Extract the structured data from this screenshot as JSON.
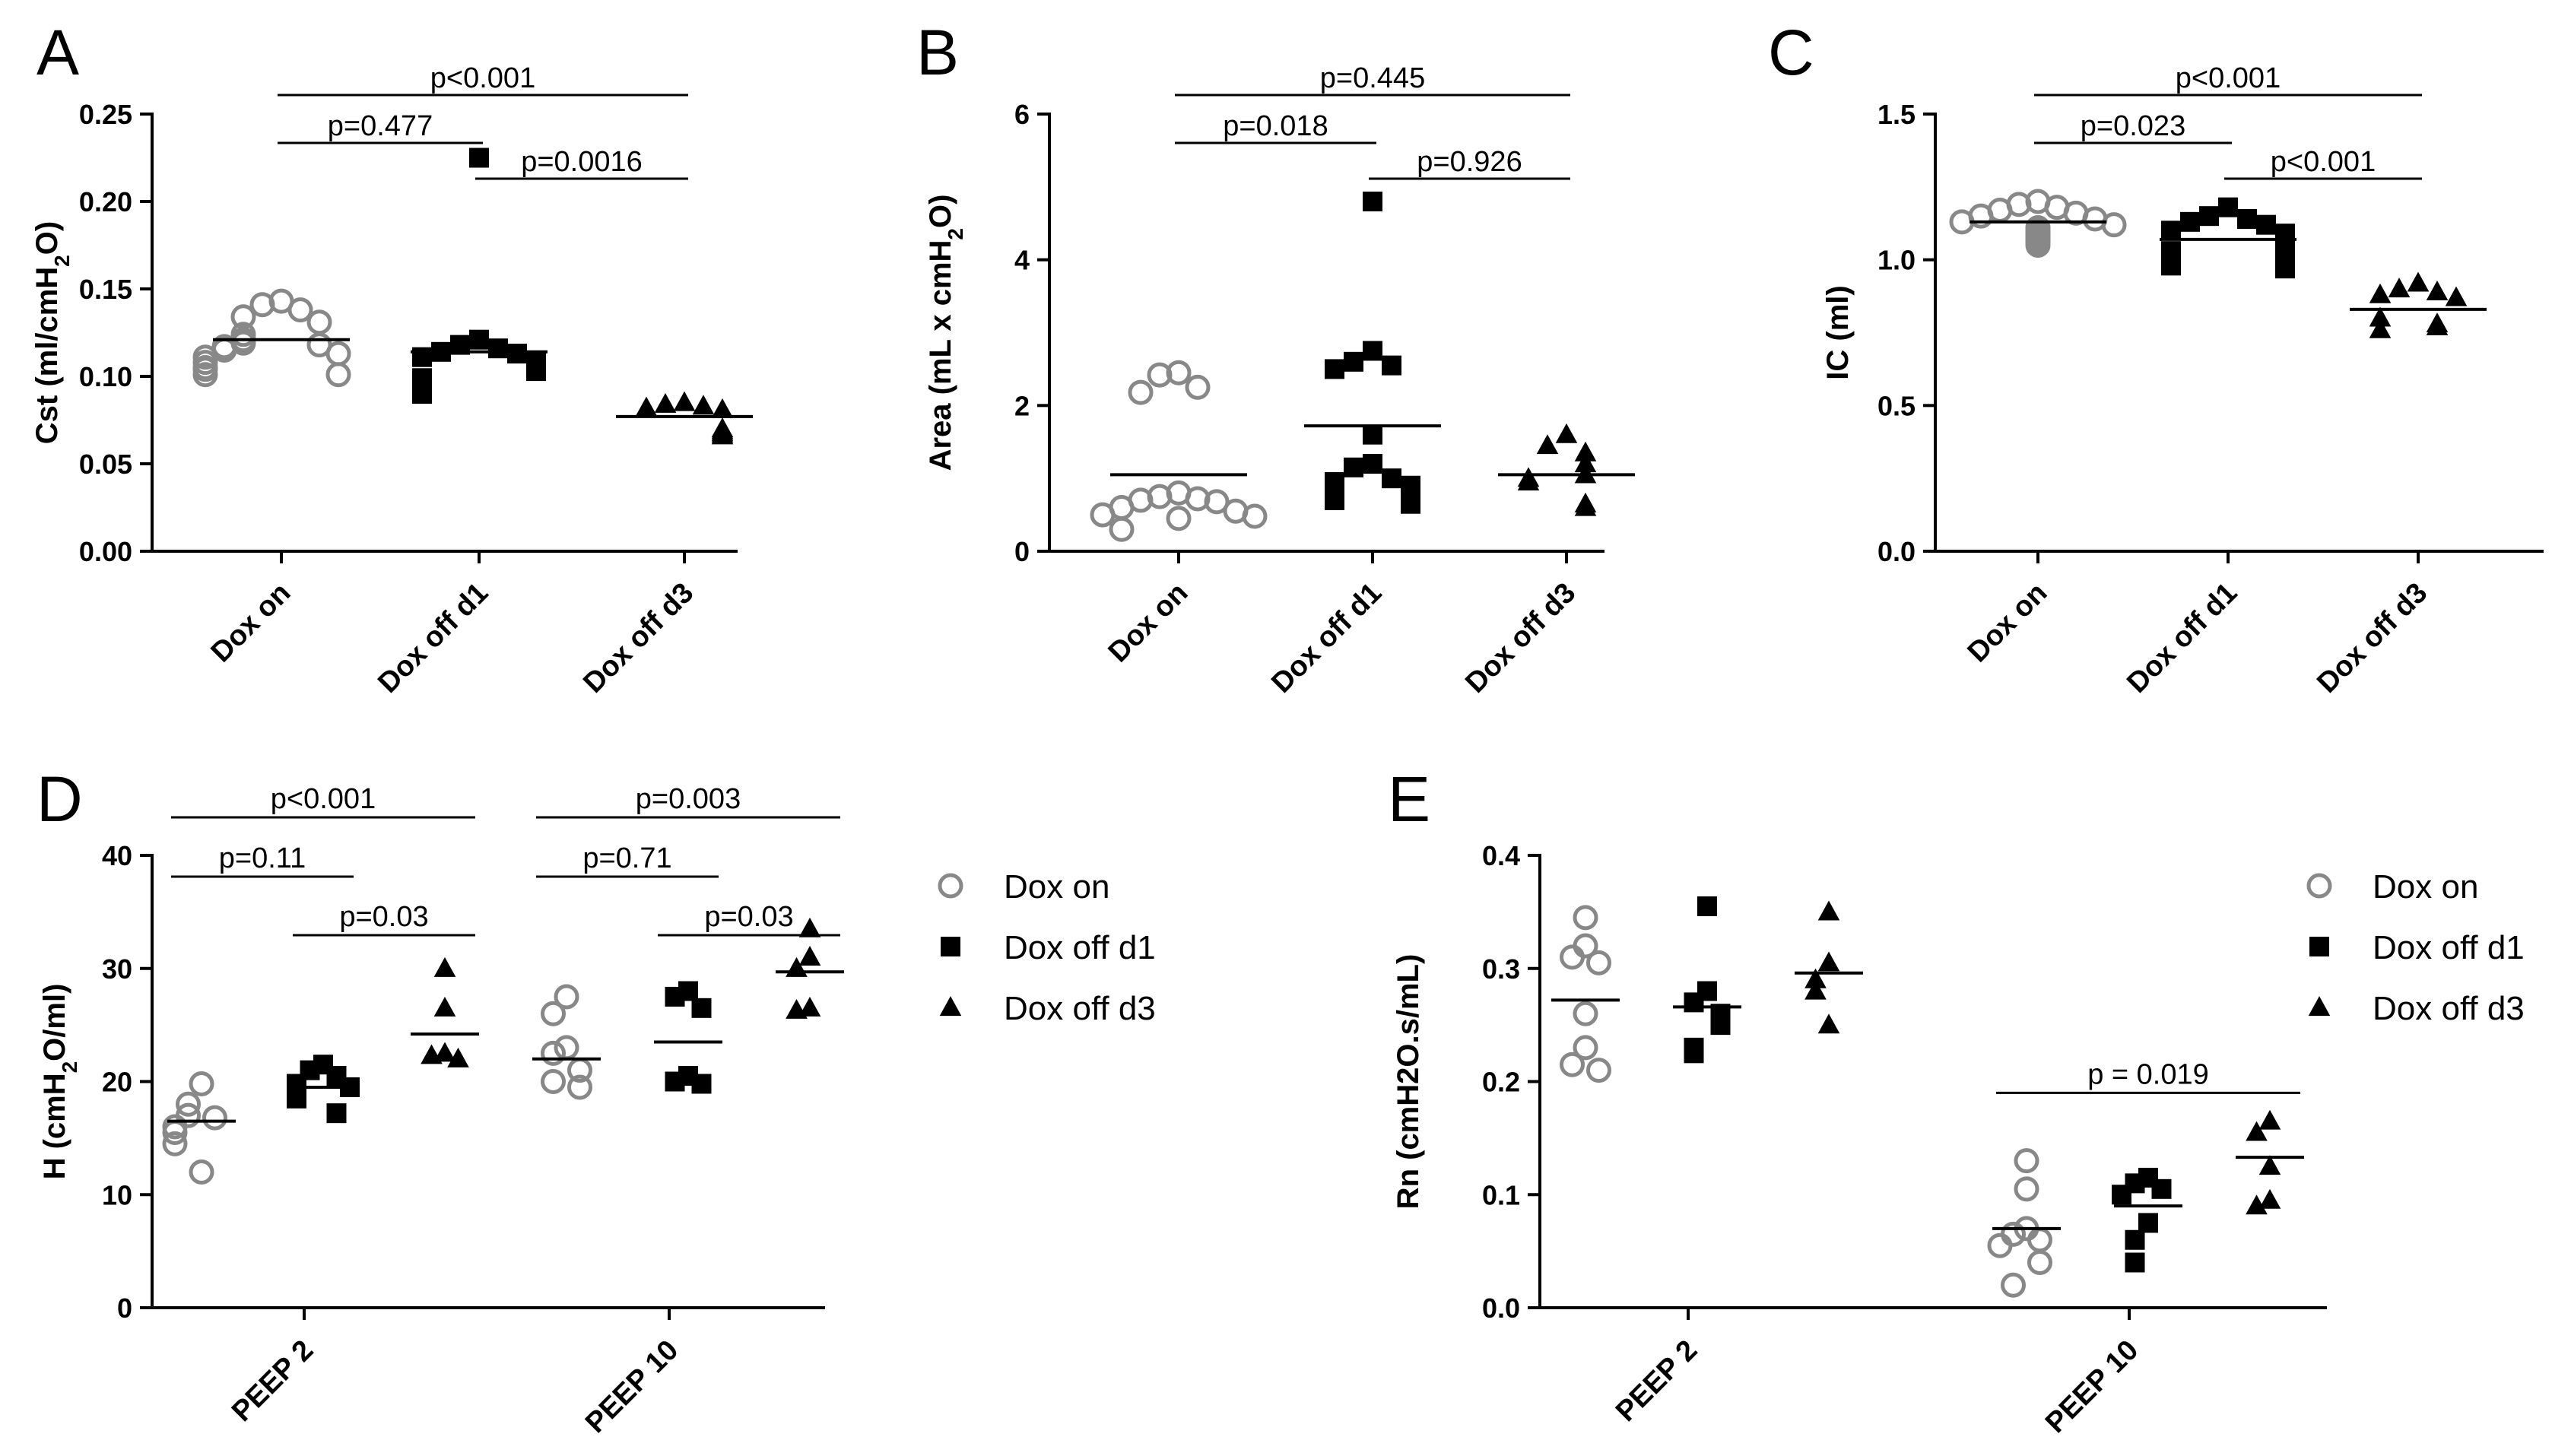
{
  "chart_data": [
    {
      "id": "A",
      "type": "scatter",
      "panel_label": "A",
      "ylabel": "Cst (ml/cmH2O)",
      "ylabel_parts": {
        "pre": "Cst (ml/cmH",
        "sub": "2",
        "post": "O)"
      },
      "ylim": [
        0,
        0.25
      ],
      "yticks": [
        0,
        0.05,
        0.1,
        0.15,
        0.2,
        0.25
      ],
      "ytick_labels": [
        "0.00",
        "0.05",
        "0.10",
        "0.15",
        "0.20",
        "0.25"
      ],
      "categories": [
        "Dox on",
        "Dox off d1",
        "Dox off d3"
      ],
      "series": [
        {
          "name": "Dox on",
          "marker": "circle-open",
          "mean": 0.121,
          "values": [
            0.143,
            0.138,
            0.131,
            0.124,
            0.121,
            0.119,
            0.118,
            0.117,
            0.115,
            0.113,
            0.111,
            0.108,
            0.105,
            0.101,
            0.101,
            0.141,
            0.134,
            0.104
          ]
        },
        {
          "name": "Dox off d1",
          "marker": "square",
          "mean": 0.114,
          "values": [
            0.225,
            0.121,
            0.118,
            0.116,
            0.114,
            0.113,
            0.111,
            0.108,
            0.106,
            0.103,
            0.099,
            0.097,
            0.095,
            0.092,
            0.09
          ]
        },
        {
          "name": "Dox off d3",
          "marker": "triangle",
          "mean": 0.077,
          "values": [
            0.085,
            0.084,
            0.083,
            0.082,
            0.081,
            0.07,
            0.069,
            0.068,
            0.067,
            0.066
          ]
        }
      ],
      "comparisons": [
        {
          "from": 0,
          "to": 1,
          "label": "p=0.477"
        },
        {
          "from": 0,
          "to": 2,
          "label": "p<0.001"
        },
        {
          "from": 1,
          "to": 2,
          "label": "p=0.0016"
        }
      ]
    },
    {
      "id": "B",
      "type": "scatter",
      "panel_label": "B",
      "ylabel": "Area (mL x cmH2O)",
      "ylabel_parts": {
        "pre": "Area (mL x cmH",
        "sub": "2",
        "post": "O)"
      },
      "ylim": [
        0,
        6
      ],
      "yticks": [
        0,
        2,
        4,
        6
      ],
      "ytick_labels": [
        "0",
        "2",
        "4",
        "6"
      ],
      "categories": [
        "Dox on",
        "Dox off d1",
        "Dox off d3"
      ],
      "series": [
        {
          "name": "Dox on",
          "marker": "circle-open",
          "mean": 1.05,
          "values": [
            2.45,
            2.42,
            2.25,
            2.18,
            0.8,
            0.75,
            0.72,
            0.7,
            0.68,
            0.6,
            0.55,
            0.5,
            0.48,
            0.45,
            0.3
          ]
        },
        {
          "name": "Dox off d1",
          "marker": "square",
          "mean": 1.72,
          "values": [
            4.8,
            2.75,
            2.6,
            2.55,
            2.5,
            1.6,
            1.2,
            1.15,
            1.0,
            0.95,
            0.9,
            0.7,
            0.65
          ]
        },
        {
          "name": "Dox off d3",
          "marker": "triangle",
          "mean": 1.05,
          "values": [
            1.6,
            1.45,
            1.35,
            1.2,
            1.05,
            1.0,
            0.95,
            0.65,
            0.6
          ]
        }
      ],
      "comparisons": [
        {
          "from": 0,
          "to": 1,
          "label": "p=0.018"
        },
        {
          "from": 0,
          "to": 2,
          "label": "p=0.445"
        },
        {
          "from": 1,
          "to": 2,
          "label": "p=0.926"
        }
      ]
    },
    {
      "id": "C",
      "type": "scatter",
      "panel_label": "C",
      "ylabel": "IC (ml)",
      "ylim": [
        0,
        1.5
      ],
      "yticks": [
        0,
        0.5,
        1.0,
        1.5
      ],
      "ytick_labels": [
        "0.0",
        "0.5",
        "1.0",
        "1.5"
      ],
      "categories": [
        "Dox on",
        "Dox off d1",
        "Dox off d3"
      ],
      "series": [
        {
          "name": "Dox on",
          "marker": "circle-open",
          "mean": 1.13,
          "values": [
            1.2,
            1.19,
            1.18,
            1.17,
            1.16,
            1.15,
            1.14,
            1.13,
            1.12,
            1.11,
            1.1,
            1.09,
            1.08,
            1.07,
            1.06,
            1.05
          ]
        },
        {
          "name": "Dox off d1",
          "marker": "square",
          "mean": 1.07,
          "values": [
            1.18,
            1.15,
            1.14,
            1.13,
            1.12,
            1.1,
            1.09,
            1.07,
            1.05,
            1.04,
            1.03,
            1.02,
            1.0,
            0.98,
            0.97
          ]
        },
        {
          "name": "Dox off d3",
          "marker": "triangle",
          "mean": 0.83,
          "values": [
            0.92,
            0.9,
            0.89,
            0.88,
            0.87,
            0.8,
            0.78,
            0.77,
            0.76
          ]
        }
      ],
      "comparisons": [
        {
          "from": 0,
          "to": 1,
          "label": "p=0.023"
        },
        {
          "from": 0,
          "to": 2,
          "label": "p<0.001"
        },
        {
          "from": 1,
          "to": 2,
          "label": "p<0.001"
        }
      ]
    },
    {
      "id": "D",
      "type": "scatter",
      "panel_label": "D",
      "ylabel": "H (cmH2O/ml)",
      "ylabel_parts": {
        "pre": "H (cmH",
        "sub": "2",
        "post": "O/ml)"
      },
      "ylim": [
        0,
        40
      ],
      "yticks": [
        0,
        10,
        20,
        30,
        40
      ],
      "ytick_labels": [
        "0",
        "10",
        "20",
        "30",
        "40"
      ],
      "categories": [
        "PEEP 2",
        "PEEP 10"
      ],
      "series": [
        {
          "name": "Dox on",
          "marker": "circle-open",
          "groups": [
            {
              "mean": 16.5,
              "values": [
                19.8,
                18.0,
                17.0,
                16.8,
                16.0,
                15.5,
                14.5,
                12.0
              ]
            },
            {
              "mean": 22.0,
              "values": [
                27.5,
                26.0,
                23.0,
                22.5,
                21.0,
                20.0,
                19.5
              ]
            }
          ]
        },
        {
          "name": "Dox off d1",
          "marker": "square",
          "groups": [
            {
              "mean": 19.5,
              "values": [
                21.5,
                21.0,
                20.5,
                19.8,
                19.5,
                18.5,
                17.2
              ]
            },
            {
              "mean": 23.5,
              "values": [
                28.0,
                27.5,
                26.5,
                20.5,
                20.0,
                19.8
              ]
            }
          ]
        },
        {
          "name": "Dox off d3",
          "marker": "triangle",
          "groups": [
            {
              "mean": 24.2,
              "values": [
                30.0,
                26.5,
                22.5,
                22.3,
                22.0
              ]
            },
            {
              "mean": 29.7,
              "values": [
                33.5,
                31.0,
                30.0,
                26.5,
                26.3
              ]
            }
          ]
        }
      ],
      "comparisons": [
        {
          "cat": 0,
          "from": 0,
          "to": 1,
          "label": "p=0.11"
        },
        {
          "cat": 0,
          "from": 0,
          "to": 2,
          "label": "p<0.001"
        },
        {
          "cat": 0,
          "from": 1,
          "to": 2,
          "label": "p=0.03"
        },
        {
          "cat": 1,
          "from": 0,
          "to": 1,
          "label": "p=0.71"
        },
        {
          "cat": 1,
          "from": 0,
          "to": 2,
          "label": "p=0.003"
        },
        {
          "cat": 1,
          "from": 1,
          "to": 2,
          "label": "p=0.03"
        }
      ],
      "legend": [
        "Dox on",
        "Dox off d1",
        "Dox off d3"
      ],
      "legend_position": "right"
    },
    {
      "id": "E",
      "type": "scatter",
      "panel_label": "E",
      "ylabel": "Rn (cmH2O.s/mL)",
      "ylim": [
        0,
        0.4
      ],
      "yticks": [
        0,
        0.1,
        0.2,
        0.3,
        0.4
      ],
      "ytick_labels": [
        "0.0",
        "0.1",
        "0.2",
        "0.3",
        "0.4"
      ],
      "categories": [
        "PEEP 2",
        "PEEP 10"
      ],
      "series": [
        {
          "name": "Dox on",
          "marker": "circle-open",
          "groups": [
            {
              "mean": 0.272,
              "values": [
                0.345,
                0.32,
                0.305,
                0.31,
                0.26,
                0.23,
                0.215,
                0.21
              ]
            },
            {
              "mean": 0.07,
              "values": [
                0.13,
                0.105,
                0.07,
                0.065,
                0.06,
                0.055,
                0.04,
                0.02
              ]
            }
          ]
        },
        {
          "name": "Dox off d1",
          "marker": "square",
          "groups": [
            {
              "mean": 0.266,
              "values": [
                0.355,
                0.28,
                0.27,
                0.26,
                0.25,
                0.23,
                0.225
              ]
            },
            {
              "mean": 0.09,
              "values": [
                0.115,
                0.11,
                0.105,
                0.1,
                0.075,
                0.06,
                0.04
              ]
            }
          ]
        },
        {
          "name": "Dox off d3",
          "marker": "triangle",
          "groups": [
            {
              "mean": 0.296,
              "values": [
                0.35,
                0.305,
                0.29,
                0.28,
                0.25
              ]
            },
            {
              "mean": 0.133,
              "values": [
                0.165,
                0.155,
                0.125,
                0.095,
                0.09
              ]
            }
          ]
        }
      ],
      "comparisons": [
        {
          "cat": 1,
          "from": 0,
          "to": 2,
          "label": "p = 0.019"
        }
      ],
      "legend": [
        "Dox on",
        "Dox off d1",
        "Dox off d3"
      ],
      "legend_position": "right"
    }
  ],
  "colors": {
    "open_marker": "#888888",
    "filled_marker": "#000000",
    "axis": "#000000"
  }
}
